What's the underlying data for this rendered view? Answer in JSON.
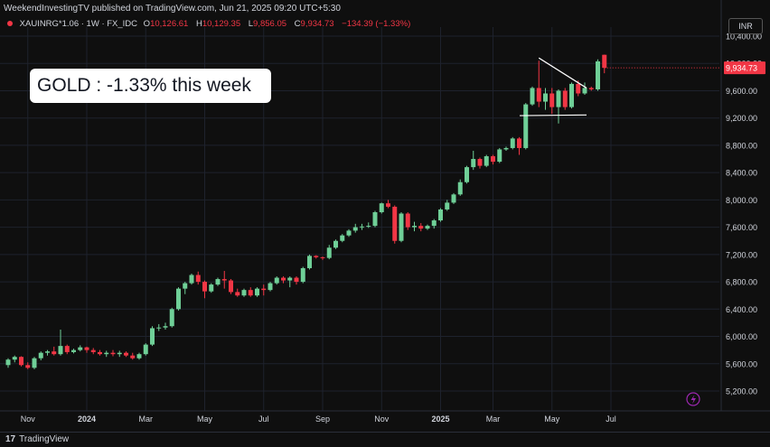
{
  "header": {
    "published": "WeekendInvestingTV published on TradingView.com, Jun 21, 2025 09:20 UTC+5:30",
    "symbol": "XAUINRG*1.06 · 1W · FX_IDC",
    "open_label": "O",
    "open": "10,126.61",
    "high_label": "H",
    "high": "10,129.35",
    "low_label": "L",
    "low": "9,856.05",
    "close_label": "C",
    "close": "9,934.73",
    "change": "−134.39 (−1.33%)"
  },
  "currency": "INR",
  "callout": "GOLD : -1.33% this week",
  "footer": {
    "brand": "TradingView"
  },
  "colors": {
    "up": "#26a69a",
    "up_body": "#6fcf97",
    "down": "#f23645",
    "bg": "#0f0f0f",
    "grid": "#1e222d",
    "axis_text": "#d1d4dc",
    "last_price_bg": "#f23645"
  },
  "icons": {
    "footer_logo": "tradingview-logo-icon",
    "bolt": "lightning-icon"
  },
  "chart_data": {
    "type": "candlestick",
    "interval": "1W",
    "last_price": 9934.73,
    "last_price_label": "9,934.73",
    "ylim": [
      5000,
      10500
    ],
    "y_ticks": [
      5200,
      5600,
      6000,
      6400,
      6800,
      7200,
      7600,
      8000,
      8400,
      8800,
      9200,
      9600,
      10000,
      10400
    ],
    "y_tick_labels": [
      "5,200.00",
      "5,600.00",
      "6,000.00",
      "6,400.00",
      "6,800.00",
      "7,200.00",
      "7,600.00",
      "8,000.00",
      "8,400.00",
      "8,800.00",
      "9,200.00",
      "9,600.00",
      "10,000.00",
      "10,400.00"
    ],
    "x_ticks": [
      {
        "label": "Nov",
        "index": 3
      },
      {
        "label": "2024",
        "index": 12
      },
      {
        "label": "Mar",
        "index": 21
      },
      {
        "label": "May",
        "index": 30
      },
      {
        "label": "Jul",
        "index": 39
      },
      {
        "label": "Sep",
        "index": 48
      },
      {
        "label": "Nov",
        "index": 57
      },
      {
        "label": "2025",
        "index": 66
      },
      {
        "label": "Mar",
        "index": 74
      },
      {
        "label": "May",
        "index": 83
      },
      {
        "label": "Jul",
        "index": 92
      }
    ],
    "candles": [
      [
        5580,
        5680,
        5540,
        5660
      ],
      [
        5660,
        5720,
        5620,
        5700
      ],
      [
        5700,
        5710,
        5560,
        5580
      ],
      [
        5580,
        5620,
        5520,
        5540
      ],
      [
        5540,
        5700,
        5520,
        5680
      ],
      [
        5680,
        5780,
        5650,
        5760
      ],
      [
        5760,
        5800,
        5720,
        5780
      ],
      [
        5780,
        5850,
        5720,
        5740
      ],
      [
        5740,
        6100,
        5720,
        5860
      ],
      [
        5860,
        5880,
        5740,
        5770
      ],
      [
        5770,
        5820,
        5750,
        5800
      ],
      [
        5800,
        5870,
        5780,
        5840
      ],
      [
        5840,
        5850,
        5760,
        5800
      ],
      [
        5800,
        5830,
        5740,
        5770
      ],
      [
        5770,
        5800,
        5720,
        5740
      ],
      [
        5740,
        5790,
        5700,
        5760
      ],
      [
        5760,
        5800,
        5710,
        5740
      ],
      [
        5740,
        5790,
        5700,
        5760
      ],
      [
        5760,
        5780,
        5700,
        5720
      ],
      [
        5720,
        5760,
        5660,
        5680
      ],
      [
        5680,
        5760,
        5660,
        5740
      ],
      [
        5740,
        5900,
        5720,
        5880
      ],
      [
        5880,
        6150,
        5860,
        6120
      ],
      [
        6120,
        6180,
        6080,
        6130
      ],
      [
        6130,
        6200,
        6100,
        6150
      ],
      [
        6150,
        6420,
        6130,
        6400
      ],
      [
        6400,
        6720,
        6380,
        6700
      ],
      [
        6700,
        6800,
        6620,
        6780
      ],
      [
        6780,
        6920,
        6760,
        6900
      ],
      [
        6900,
        6950,
        6760,
        6800
      ],
      [
        6800,
        6820,
        6560,
        6660
      ],
      [
        6660,
        6780,
        6640,
        6760
      ],
      [
        6760,
        6860,
        6740,
        6840
      ],
      [
        6840,
        6960,
        6700,
        6820
      ],
      [
        6820,
        6840,
        6620,
        6650
      ],
      [
        6650,
        6700,
        6580,
        6600
      ],
      [
        6600,
        6700,
        6580,
        6680
      ],
      [
        6680,
        6720,
        6580,
        6600
      ],
      [
        6600,
        6720,
        6580,
        6700
      ],
      [
        6700,
        6760,
        6600,
        6680
      ],
      [
        6680,
        6800,
        6660,
        6780
      ],
      [
        6780,
        6880,
        6760,
        6860
      ],
      [
        6860,
        6880,
        6780,
        6820
      ],
      [
        6820,
        6880,
        6720,
        6860
      ],
      [
        6860,
        6880,
        6760,
        6800
      ],
      [
        6800,
        7020,
        6780,
        7000
      ],
      [
        7000,
        7200,
        6980,
        7180
      ],
      [
        7180,
        7190,
        7140,
        7160
      ],
      [
        7160,
        7170,
        7120,
        7150
      ],
      [
        7150,
        7340,
        7130,
        7300
      ],
      [
        7300,
        7420,
        7280,
        7400
      ],
      [
        7400,
        7500,
        7380,
        7480
      ],
      [
        7480,
        7570,
        7460,
        7550
      ],
      [
        7550,
        7650,
        7520,
        7600
      ],
      [
        7600,
        7650,
        7560,
        7610
      ],
      [
        7610,
        7670,
        7590,
        7620
      ],
      [
        7620,
        7840,
        7600,
        7820
      ],
      [
        7820,
        7960,
        7800,
        7950
      ],
      [
        7950,
        8000,
        7880,
        7900
      ],
      [
        7900,
        7920,
        7360,
        7400
      ],
      [
        7400,
        7820,
        7380,
        7800
      ],
      [
        7800,
        7820,
        7560,
        7600
      ],
      [
        7600,
        7680,
        7540,
        7620
      ],
      [
        7620,
        7660,
        7540,
        7580
      ],
      [
        7580,
        7640,
        7560,
        7620
      ],
      [
        7620,
        7720,
        7580,
        7700
      ],
      [
        7700,
        7880,
        7680,
        7860
      ],
      [
        7860,
        8000,
        7840,
        7960
      ],
      [
        7960,
        8100,
        7940,
        8080
      ],
      [
        8080,
        8300,
        8060,
        8260
      ],
      [
        8260,
        8500,
        8240,
        8480
      ],
      [
        8480,
        8720,
        8440,
        8600
      ],
      [
        8600,
        8620,
        8460,
        8500
      ],
      [
        8500,
        8660,
        8480,
        8640
      ],
      [
        8640,
        8660,
        8520,
        8560
      ],
      [
        8560,
        8760,
        8540,
        8740
      ],
      [
        8740,
        8780,
        8720,
        8760
      ],
      [
        8760,
        8920,
        8740,
        8900
      ],
      [
        8900,
        8920,
        8660,
        8760
      ],
      [
        8760,
        9420,
        8740,
        9400
      ],
      [
        9400,
        9660,
        9380,
        9640
      ],
      [
        9640,
        10040,
        9360,
        9440
      ],
      [
        9440,
        9640,
        9320,
        9560
      ],
      [
        9560,
        9640,
        9260,
        9360
      ],
      [
        9360,
        9620,
        9120,
        9600
      ],
      [
        9600,
        9640,
        9320,
        9360
      ],
      [
        9360,
        9720,
        9340,
        9700
      ],
      [
        9700,
        9750,
        9520,
        9560
      ],
      [
        9560,
        9720,
        9540,
        9640
      ],
      [
        9640,
        9660,
        9600,
        9620
      ],
      [
        9620,
        10060,
        9600,
        10030
      ],
      [
        10126.61,
        10129.35,
        9856.05,
        9934.73
      ]
    ]
  }
}
